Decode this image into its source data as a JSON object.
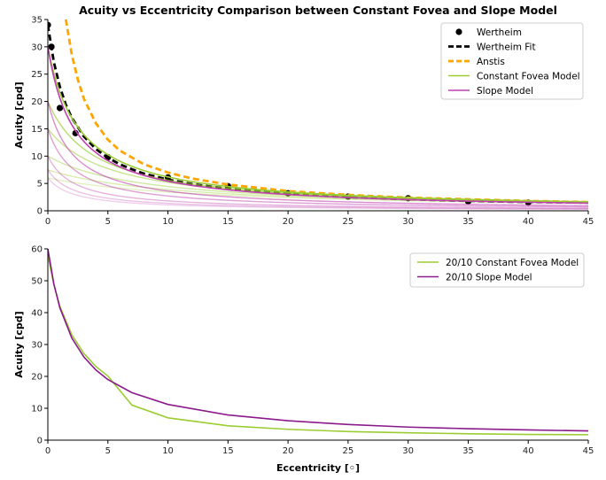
{
  "chart_data": [
    {
      "type": "line",
      "title": "Acuity vs Eccentricity Comparison between Constant Fovea and Slope Model",
      "xlabel": "",
      "ylabel": "Acuity [cpd]",
      "xlim": [
        0,
        45
      ],
      "ylim": [
        0,
        35
      ],
      "xticks": [
        0,
        5,
        10,
        15,
        20,
        25,
        30,
        35,
        40,
        45
      ],
      "yticks": [
        0,
        5,
        10,
        15,
        20,
        25,
        30,
        35
      ],
      "legend_position": "top-right",
      "legend": [
        {
          "label": "Wertheim",
          "style": "marker",
          "color": "#000000"
        },
        {
          "label": "Wertheim Fit",
          "style": "dashed",
          "color": "#000000"
        },
        {
          "label": "Anstis",
          "style": "dashed",
          "color": "#ffa500"
        },
        {
          "label": "Constant Fovea Model",
          "style": "solid",
          "color": "#9acd32"
        },
        {
          "label": "Slope Model",
          "style": "solid",
          "color": "#c040b0"
        }
      ],
      "series": [
        {
          "name": "Wertheim",
          "kind": "scatter",
          "color": "#000000",
          "x": [
            0,
            0.3,
            1,
            2.3,
            5,
            10,
            15,
            20,
            25,
            30,
            35,
            40
          ],
          "y": [
            34,
            30,
            18.8,
            14.2,
            9.8,
            6.1,
            4.5,
            3.2,
            2.6,
            2.3,
            1.7,
            1.5
          ]
        },
        {
          "name": "Wertheim Fit",
          "kind": "line",
          "dash": "dashed",
          "color": "#000000",
          "x": [
            0,
            0.5,
            1,
            1.5,
            2,
            3,
            4,
            5,
            6,
            7,
            8,
            10,
            12,
            15,
            20,
            25,
            30,
            35,
            40,
            45
          ],
          "y": [
            34,
            27.2,
            22.7,
            19.4,
            17,
            13.6,
            11.3,
            9.7,
            8.5,
            7.6,
            6.8,
            5.7,
            4.9,
            4.0,
            3.1,
            2.5,
            2.1,
            1.8,
            1.6,
            1.5
          ]
        },
        {
          "name": "Anstis",
          "kind": "line",
          "dash": "dashed",
          "color": "#ffa500",
          "x": [
            1.5,
            2,
            2.5,
            3,
            4,
            5,
            6,
            8,
            10,
            12,
            15,
            20,
            25,
            30,
            35,
            40,
            45
          ],
          "y": [
            35,
            28.5,
            24,
            20.5,
            16,
            13.0,
            11.0,
            8.5,
            7.0,
            5.9,
            4.8,
            3.6,
            2.9,
            2.4,
            2.1,
            1.8,
            1.6
          ]
        },
        {
          "name": "Constant Fovea Model",
          "kind": "family",
          "color": "#9acd32",
          "a": [
            30,
            20,
            15,
            10,
            7.5,
            6
          ],
          "e2": [
            2.6,
            3.9,
            5.3,
            8,
            10.7,
            13.4
          ],
          "opacity": [
            1,
            0.7,
            0.55,
            0.45,
            0.38,
            0.3
          ]
        },
        {
          "name": "Slope Model",
          "kind": "family",
          "color": "#c040b0",
          "a": [
            30,
            20,
            15,
            10,
            7.5,
            6
          ],
          "e2": [
            2.2,
            2.2,
            2.2,
            2.2,
            2.2,
            2.2
          ],
          "opacity": [
            1,
            0.6,
            0.5,
            0.4,
            0.32,
            0.25
          ]
        }
      ]
    },
    {
      "type": "line",
      "title": "",
      "xlabel": "Eccentricity [◦]",
      "ylabel": "Acuity [cpd]",
      "xlim": [
        0,
        45
      ],
      "ylim": [
        0,
        60
      ],
      "xticks": [
        0,
        5,
        10,
        15,
        20,
        25,
        30,
        35,
        40,
        45
      ],
      "yticks": [
        0,
        10,
        20,
        30,
        40,
        50,
        60
      ],
      "legend_position": "top-right",
      "legend": [
        {
          "label": "20/10 Constant Fovea Model",
          "style": "solid",
          "color": "#9acd32"
        },
        {
          "label": "20/10 Slope Model",
          "style": "solid",
          "color": "#8b1a8b"
        }
      ],
      "series": [
        {
          "name": "20/10 Constant Fovea Model",
          "kind": "line",
          "color": "#9acd32",
          "x": [
            0,
            0.5,
            1,
            2,
            3,
            4,
            5,
            7,
            10,
            15,
            20,
            25,
            30,
            35,
            40,
            45
          ],
          "y": [
            58,
            48.7,
            42.0,
            33.0,
            27.2,
            23.1,
            20.1,
            11.0,
            7.0,
            4.5,
            3.4,
            2.7,
            2.3,
            2.0,
            1.8,
            1.7
          ]
        },
        {
          "name": "20/10 Slope Model",
          "kind": "line",
          "color": "#8b1a8b",
          "x": [
            0,
            0.5,
            1,
            2,
            3,
            4,
            5,
            7,
            10,
            15,
            20,
            25,
            30,
            35,
            40,
            45
          ],
          "y": [
            60,
            49.0,
            41.5,
            32.0,
            26.1,
            22.0,
            19.0,
            14.9,
            11.2,
            7.9,
            6.1,
            4.9,
            4.1,
            3.6,
            3.2,
            2.9
          ]
        }
      ]
    }
  ]
}
